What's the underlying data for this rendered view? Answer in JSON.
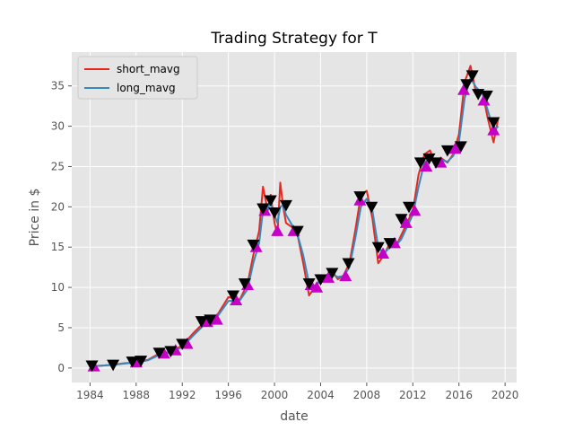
{
  "chart_data": {
    "type": "line",
    "title": "Trading Strategy for T",
    "xlabel": "date",
    "ylabel": "Price in $",
    "xlim": [
      "1982-06-01",
      "2021-01-01"
    ],
    "ylim": [
      -1.8,
      39.2
    ],
    "x_ticks": [
      "1984",
      "1988",
      "1992",
      "1996",
      "2000",
      "2004",
      "2008",
      "2012",
      "2016",
      "2020"
    ],
    "y_ticks": [
      0,
      5,
      10,
      15,
      20,
      25,
      30,
      35
    ],
    "grid": true,
    "legend_position": "top-left",
    "series": [
      {
        "name": "short_mavg",
        "color": "#e8281e",
        "points": [
          [
            "1984-01-01",
            0.2
          ],
          [
            "1985-01-01",
            0.3
          ],
          [
            "1986-01-01",
            0.4
          ],
          [
            "1987-01-01",
            0.6
          ],
          [
            "1988-01-01",
            0.7
          ],
          [
            "1989-01-01",
            1.0
          ],
          [
            "1990-01-01",
            1.8
          ],
          [
            "1991-01-01",
            2.0
          ],
          [
            "1992-01-01",
            2.8
          ],
          [
            "1993-01-01",
            4.4
          ],
          [
            "1994-01-01",
            5.8
          ],
          [
            "1995-01-01",
            6.5
          ],
          [
            "1996-01-01",
            8.8
          ],
          [
            "1997-01-01",
            8.5
          ],
          [
            "1997-09-01",
            10.5
          ],
          [
            "1998-03-01",
            14.0
          ],
          [
            "1998-09-01",
            17.0
          ],
          [
            "1999-01-01",
            22.5
          ],
          [
            "1999-06-01",
            19.5
          ],
          [
            "1999-09-01",
            21.5
          ],
          [
            "2000-01-01",
            18.0
          ],
          [
            "2000-04-01",
            16.5
          ],
          [
            "2000-07-01",
            23.0
          ],
          [
            "2000-10-01",
            20.0
          ],
          [
            "2001-01-01",
            18.0
          ],
          [
            "2001-07-01",
            17.5
          ],
          [
            "2002-01-01",
            16.5
          ],
          [
            "2002-07-01",
            13.0
          ],
          [
            "2003-01-01",
            9.0
          ],
          [
            "2003-07-01",
            10.0
          ],
          [
            "2004-01-01",
            11.0
          ],
          [
            "2004-07-01",
            11.5
          ],
          [
            "2005-01-01",
            12.0
          ],
          [
            "2005-07-01",
            11.0
          ],
          [
            "2006-01-01",
            11.5
          ],
          [
            "2006-07-01",
            13.0
          ],
          [
            "2007-01-01",
            17.0
          ],
          [
            "2007-07-01",
            21.5
          ],
          [
            "2008-01-01",
            22.0
          ],
          [
            "2008-07-01",
            18.5
          ],
          [
            "2009-01-01",
            13.0
          ],
          [
            "2009-07-01",
            14.0
          ],
          [
            "2010-01-01",
            15.5
          ],
          [
            "2010-07-01",
            15.0
          ],
          [
            "2011-01-01",
            16.5
          ],
          [
            "2011-07-01",
            18.0
          ],
          [
            "2012-01-01",
            19.5
          ],
          [
            "2012-07-01",
            24.0
          ],
          [
            "2013-01-01",
            26.5
          ],
          [
            "2013-07-01",
            27.0
          ],
          [
            "2014-01-01",
            25.0
          ],
          [
            "2014-07-01",
            26.0
          ],
          [
            "2015-01-01",
            25.5
          ],
          [
            "2015-07-01",
            26.5
          ],
          [
            "2016-01-01",
            29.0
          ],
          [
            "2016-07-01",
            35.5
          ],
          [
            "2017-01-01",
            37.5
          ],
          [
            "2017-07-01",
            34.0
          ],
          [
            "2018-01-01",
            34.5
          ],
          [
            "2018-07-01",
            31.0
          ],
          [
            "2019-01-01",
            28.0
          ],
          [
            "2019-06-01",
            31.0
          ]
        ]
      },
      {
        "name": "long_mavg",
        "color": "#348abd",
        "points": [
          [
            "1984-01-01",
            0.2
          ],
          [
            "1985-01-01",
            0.3
          ],
          [
            "1986-01-01",
            0.4
          ],
          [
            "1987-01-01",
            0.55
          ],
          [
            "1988-01-01",
            0.7
          ],
          [
            "1989-01-01",
            0.95
          ],
          [
            "1990-01-01",
            1.6
          ],
          [
            "1991-01-01",
            1.95
          ],
          [
            "1992-01-01",
            2.6
          ],
          [
            "1993-01-01",
            4.1
          ],
          [
            "1994-01-01",
            5.5
          ],
          [
            "1995-01-01",
            6.3
          ],
          [
            "1996-01-01",
            8.3
          ],
          [
            "1997-01-01",
            8.4
          ],
          [
            "1997-09-01",
            9.8
          ],
          [
            "1998-03-01",
            13.0
          ],
          [
            "1998-09-01",
            15.5
          ],
          [
            "1999-01-01",
            19.5
          ],
          [
            "1999-06-01",
            19.8
          ],
          [
            "1999-09-01",
            20.5
          ],
          [
            "2000-01-01",
            19.0
          ],
          [
            "2000-04-01",
            18.0
          ],
          [
            "2000-07-01",
            20.0
          ],
          [
            "2000-10-01",
            20.2
          ],
          [
            "2001-01-01",
            19.0
          ],
          [
            "2001-07-01",
            17.8
          ],
          [
            "2002-01-01",
            16.5
          ],
          [
            "2002-07-01",
            14.0
          ],
          [
            "2003-01-01",
            10.5
          ],
          [
            "2003-07-01",
            10.2
          ],
          [
            "2004-01-01",
            10.8
          ],
          [
            "2004-07-01",
            11.2
          ],
          [
            "2005-01-01",
            11.6
          ],
          [
            "2005-07-01",
            11.3
          ],
          [
            "2006-01-01",
            11.4
          ],
          [
            "2006-07-01",
            12.5
          ],
          [
            "2007-01-01",
            16.0
          ],
          [
            "2007-07-01",
            20.0
          ],
          [
            "2008-01-01",
            21.0
          ],
          [
            "2008-07-01",
            19.5
          ],
          [
            "2009-01-01",
            15.0
          ],
          [
            "2009-07-01",
            14.2
          ],
          [
            "2010-01-01",
            15.0
          ],
          [
            "2010-07-01",
            15.1
          ],
          [
            "2011-01-01",
            16.0
          ],
          [
            "2011-07-01",
            17.5
          ],
          [
            "2012-01-01",
            19.0
          ],
          [
            "2012-07-01",
            22.5
          ],
          [
            "2013-01-01",
            25.5
          ],
          [
            "2013-07-01",
            26.0
          ],
          [
            "2014-01-01",
            25.5
          ],
          [
            "2014-07-01",
            25.8
          ],
          [
            "2015-01-01",
            25.6
          ],
          [
            "2015-07-01",
            26.3
          ],
          [
            "2016-01-01",
            28.0
          ],
          [
            "2016-07-01",
            33.5
          ],
          [
            "2017-01-01",
            36.0
          ],
          [
            "2017-07-01",
            34.8
          ],
          [
            "2018-01-01",
            34.2
          ],
          [
            "2018-07-01",
            32.0
          ],
          [
            "2019-01-01",
            29.5
          ],
          [
            "2019-06-01",
            30.0
          ]
        ]
      }
    ],
    "buy_signals": {
      "marker": "triangle-up",
      "color": "#c600c6",
      "points": [
        [
          "1984-05-01",
          0.2
        ],
        [
          "1988-01-01",
          0.7
        ],
        [
          "1990-06-01",
          1.8
        ],
        [
          "1991-06-01",
          2.2
        ],
        [
          "1992-06-01",
          3.0
        ],
        [
          "1994-03-01",
          5.7
        ],
        [
          "1995-01-01",
          6.0
        ],
        [
          "1996-09-01",
          8.4
        ],
        [
          "1997-09-01",
          10.3
        ],
        [
          "1998-06-01",
          15.0
        ],
        [
          "1999-03-01",
          19.5
        ],
        [
          "2000-04-01",
          17.0
        ],
        [
          "2001-09-01",
          17.0
        ],
        [
          "2003-03-01",
          10.3
        ],
        [
          "2003-09-01",
          10.0
        ],
        [
          "2004-09-01",
          11.2
        ],
        [
          "2006-03-01",
          11.4
        ],
        [
          "2007-06-01",
          20.8
        ],
        [
          "2009-06-01",
          14.2
        ],
        [
          "2010-06-01",
          15.5
        ],
        [
          "2011-06-01",
          18.0
        ],
        [
          "2012-03-01",
          19.5
        ],
        [
          "2013-03-01",
          25.0
        ],
        [
          "2014-06-01",
          25.5
        ],
        [
          "2015-09-01",
          27.2
        ],
        [
          "2016-06-01",
          34.5
        ],
        [
          "2018-03-01",
          33.2
        ],
        [
          "2019-01-01",
          29.5
        ]
      ]
    },
    "sell_signals": {
      "marker": "triangle-down",
      "color": "#000000",
      "points": [
        [
          "1984-03-01",
          0.3
        ],
        [
          "1986-01-01",
          0.4
        ],
        [
          "1987-09-01",
          0.8
        ],
        [
          "1988-06-01",
          0.9
        ],
        [
          "1990-01-01",
          1.9
        ],
        [
          "1991-01-01",
          2.1
        ],
        [
          "1992-01-01",
          3.0
        ],
        [
          "1993-09-01",
          5.8
        ],
        [
          "1994-06-01",
          6.0
        ],
        [
          "1996-06-01",
          9.0
        ],
        [
          "1997-06-01",
          10.5
        ],
        [
          "1998-03-01",
          15.3
        ],
        [
          "1999-01-01",
          19.8
        ],
        [
          "1999-09-01",
          20.8
        ],
        [
          "2000-01-01",
          19.3
        ],
        [
          "2001-01-01",
          20.2
        ],
        [
          "2002-01-01",
          17.0
        ],
        [
          "2003-01-01",
          10.5
        ],
        [
          "2004-01-01",
          11.0
        ],
        [
          "2005-01-01",
          11.8
        ],
        [
          "2006-06-01",
          13.0
        ],
        [
          "2007-06-01",
          21.3
        ],
        [
          "2008-06-01",
          20.0
        ],
        [
          "2009-01-01",
          15.0
        ],
        [
          "2010-01-01",
          15.5
        ],
        [
          "2011-01-01",
          18.5
        ],
        [
          "2011-09-01",
          20.0
        ],
        [
          "2012-09-01",
          25.5
        ],
        [
          "2013-06-01",
          26.0
        ],
        [
          "2014-01-01",
          25.5
        ],
        [
          "2015-01-01",
          27.0
        ],
        [
          "2016-03-01",
          27.5
        ],
        [
          "2016-09-01",
          35.2
        ],
        [
          "2017-03-01",
          36.3
        ],
        [
          "2017-09-01",
          34.0
        ],
        [
          "2018-06-01",
          33.8
        ],
        [
          "2019-01-01",
          30.5
        ]
      ]
    }
  }
}
